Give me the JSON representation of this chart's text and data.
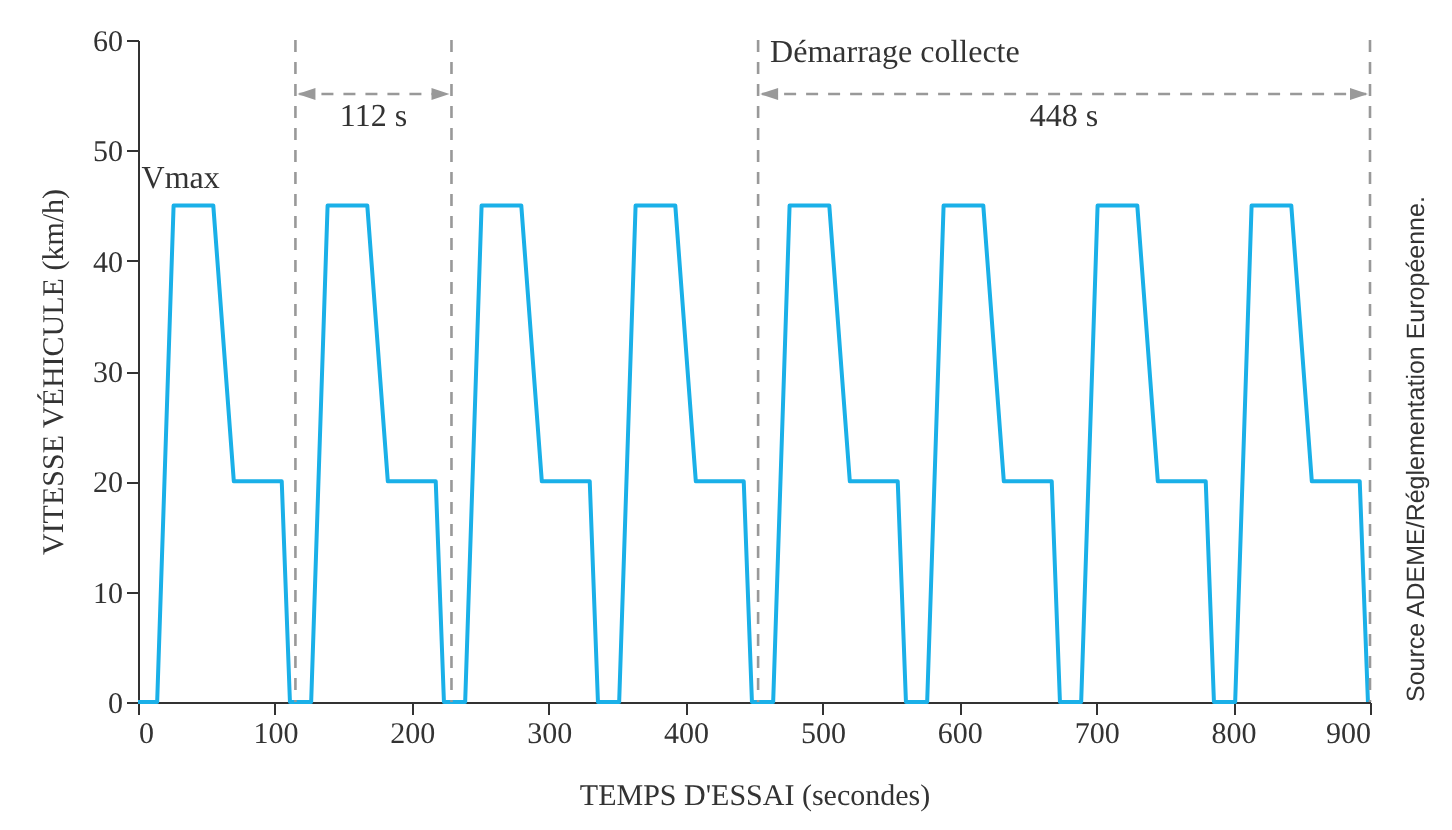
{
  "chart_data": {
    "type": "line",
    "xlabel": "TEMPS D'ESSAI (secondes)",
    "ylabel": "VITESSE VÉHICULE (km/h)",
    "x": [
      0,
      14,
      26,
      55,
      70,
      105,
      111,
      126.5,
      138.5,
      167.5,
      182.5,
      217.5,
      223.5,
      239,
      251,
      280,
      295,
      330,
      336,
      351.5,
      363.5,
      392.5,
      407.5,
      442.5,
      448.5,
      464,
      476,
      505,
      520,
      555,
      561,
      576.5,
      588.5,
      617.5,
      632.5,
      667.5,
      673.5,
      689,
      701,
      730,
      745,
      780,
      786,
      801.5,
      813.5,
      842.5,
      857.5,
      892.5,
      898.5
    ],
    "series": [
      {
        "color": "#1ab0e8",
        "values": [
          0,
          0,
          45,
          45,
          20,
          20,
          0,
          0,
          45,
          45,
          20,
          20,
          0,
          0,
          45,
          45,
          20,
          20,
          0,
          0,
          45,
          45,
          20,
          20,
          0,
          0,
          45,
          45,
          20,
          20,
          0,
          0,
          45,
          45,
          20,
          20,
          0,
          0,
          45,
          45,
          20,
          20,
          0,
          0,
          45,
          45,
          20,
          20,
          0
        ]
      }
    ],
    "xlim": [
      0,
      900
    ],
    "xticks": [
      0,
      100,
      200,
      300,
      400,
      500,
      600,
      700,
      800,
      900
    ],
    "ylim": [
      0,
      60
    ],
    "yticks": [
      0,
      10,
      20,
      30,
      40,
      50,
      60
    ],
    "grid": false,
    "marker": "none",
    "line_style": "solid",
    "ref_lines": [
      {
        "axis": "x",
        "value": 115,
        "color": "#999999",
        "line_style": "dashed"
      },
      {
        "axis": "x",
        "value": 229,
        "color": "#999999",
        "line_style": "dashed"
      },
      {
        "axis": "x",
        "value": 453,
        "color": "#999999",
        "line_style": "dashed",
        "label": "Démarrage collecte"
      },
      {
        "axis": "x",
        "value": 900,
        "color": "#999999",
        "line_style": "dashed"
      }
    ],
    "annotations": [
      "Vmax",
      "112 s",
      "448 s",
      "Source ADEME/Réglementation Européenne."
    ]
  }
}
